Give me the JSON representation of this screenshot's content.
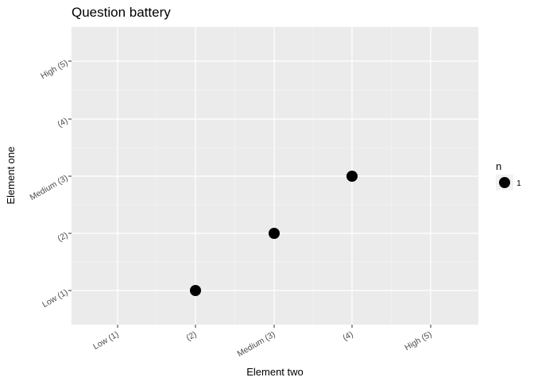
{
  "chart_data": {
    "type": "scatter",
    "title": "Question battery",
    "xlabel": "Element two",
    "ylabel": "Element one",
    "x_categories": [
      "Low (1)",
      "(2)",
      "Medium (3)",
      "(4)",
      "High (5)"
    ],
    "y_categories": [
      "Low (1)",
      "(2)",
      "Medium (3)",
      "(4)",
      "High (5)"
    ],
    "points": [
      {
        "x": "(2)",
        "y": "Low (1)",
        "n": 1
      },
      {
        "x": "Medium (3)",
        "y": "(2)",
        "n": 1
      },
      {
        "x": "(4)",
        "y": "Medium (3)",
        "n": 1
      }
    ],
    "legend": {
      "title": "n",
      "entries": [
        {
          "label": "1"
        }
      ],
      "position": "right"
    },
    "grid": true,
    "panel_color": "#ebebeb",
    "point_color": "#000000"
  }
}
